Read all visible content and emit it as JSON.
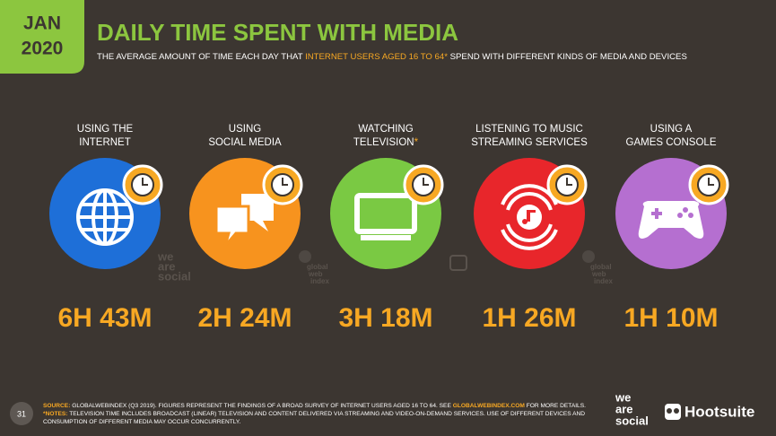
{
  "badge": {
    "month": "JAN",
    "year": "2020"
  },
  "header": {
    "title": "DAILY TIME SPENT WITH MEDIA",
    "subtitle": [
      "THE AVERAGE AMOUNT OF TIME EACH DAY THAT ",
      "INTERNET USERS AGED 16 TO 64*",
      " SPEND WITH DIFFERENT KINDS OF MEDIA AND DEVICES"
    ]
  },
  "items": [
    {
      "label": [
        "USING THE",
        "INTERNET"
      ],
      "value": "6H 43M"
    },
    {
      "label": [
        "USING",
        "SOCIAL MEDIA"
      ],
      "value": "2H 24M"
    },
    {
      "label": [
        "WATCHING",
        "TELEVISION"
      ],
      "marker": "*",
      "value": "3H 18M"
    },
    {
      "label": [
        "LISTENING TO MUSIC",
        "STREAMING SERVICES"
      ],
      "value": "1H 26M"
    },
    {
      "label": [
        "USING A",
        "GAMES CONSOLE"
      ],
      "value": "1H 10M"
    }
  ],
  "watermarks": {
    "we_are_social": [
      "we",
      "are",
      "social"
    ],
    "gwi": [
      "global",
      "web",
      "index"
    ]
  },
  "footer": {
    "page": "31",
    "source_label": "SOURCE:",
    "source_text": " GLOBALWEBINDEX (Q3 2019). FIGURES REPRESENT THE FINDINGS OF A BROAD SURVEY OF INTERNET USERS AGED 16 TO 64. SEE ",
    "source_link": "GLOBALWEBINDEX.COM",
    "source_end": " FOR MORE DETAILS.",
    "notes_label": "*NOTES:",
    "notes_text": " TELEVISION TIME INCLUDES BROADCAST (LINEAR) TELEVISION AND CONTENT DELIVERED VIA STREAMING AND VIDEO-ON-DEMAND SERVICES. USE OF DIFFERENT DEVICES AND",
    "notes_text2": "CONSUMPTION OF DIFFERENT MEDIA MAY OCCUR CONCURRENTLY."
  },
  "logos": {
    "we_are_social": [
      "we",
      "are",
      "social"
    ],
    "hootsuite": "Hootsuite"
  }
}
